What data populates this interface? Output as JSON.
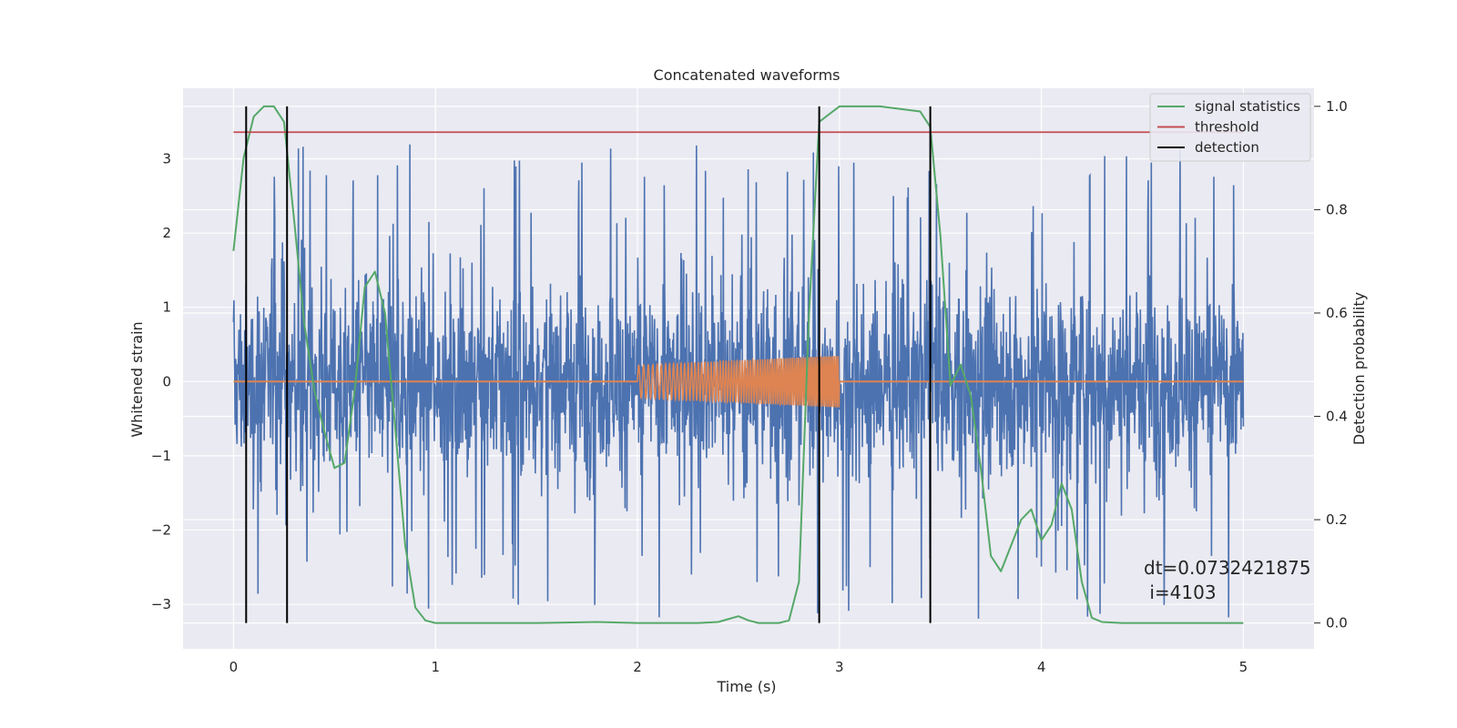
{
  "chart_data": {
    "type": "line",
    "title": "Concatenated waveforms",
    "xlabel": "Time (s)",
    "ylabel": "Whitened strain",
    "y2label": "Detection probability",
    "xlim": [
      -0.25,
      5.35
    ],
    "ylim": [
      -3.6,
      3.95
    ],
    "y2lim": [
      -0.05,
      1.035
    ],
    "xticks": [
      0,
      1,
      2,
      3,
      4,
      5
    ],
    "yticks": [
      -3,
      -2,
      -1,
      0,
      1,
      2,
      3
    ],
    "y2ticks": [
      0.0,
      0.2,
      0.4,
      0.6,
      0.8,
      1.0
    ],
    "grid": true,
    "legend_position": "top-right",
    "colors": {
      "background": "#eaeaf2",
      "noise": "#4c72b0",
      "template": "#dd8452",
      "signal_statistics": "#55a868",
      "threshold": "#c44e52",
      "detection": "#000000"
    },
    "series": [
      {
        "name": "signal statistics",
        "axis": "right",
        "x": [
          0.0,
          0.05,
          0.1,
          0.15,
          0.2,
          0.25,
          0.3,
          0.35,
          0.4,
          0.45,
          0.5,
          0.55,
          0.6,
          0.65,
          0.7,
          0.75,
          0.8,
          0.85,
          0.9,
          0.95,
          1.0,
          1.2,
          1.5,
          1.8,
          2.0,
          2.3,
          2.4,
          2.5,
          2.55,
          2.6,
          2.7,
          2.75,
          2.8,
          2.85,
          2.9,
          3.0,
          3.2,
          3.4,
          3.45,
          3.5,
          3.55,
          3.6,
          3.65,
          3.7,
          3.75,
          3.8,
          3.85,
          3.9,
          3.95,
          4.0,
          4.05,
          4.1,
          4.15,
          4.2,
          4.25,
          4.3,
          4.4,
          4.6,
          5.0
        ],
        "values": [
          0.72,
          0.9,
          0.98,
          1.0,
          1.0,
          0.97,
          0.78,
          0.58,
          0.45,
          0.37,
          0.3,
          0.31,
          0.45,
          0.65,
          0.68,
          0.6,
          0.38,
          0.15,
          0.03,
          0.005,
          0.0,
          0.0,
          0.0,
          0.002,
          0.0,
          0.0,
          0.002,
          0.013,
          0.005,
          0.0,
          0.0,
          0.005,
          0.08,
          0.6,
          0.97,
          1.0,
          1.0,
          0.99,
          0.96,
          0.75,
          0.46,
          0.5,
          0.44,
          0.3,
          0.13,
          0.1,
          0.15,
          0.2,
          0.22,
          0.16,
          0.19,
          0.27,
          0.22,
          0.08,
          0.01,
          0.002,
          0.0,
          0.0,
          0.0
        ]
      },
      {
        "name": "threshold",
        "axis": "right",
        "x": [
          0,
          5
        ],
        "values": [
          0.95,
          0.95
        ]
      },
      {
        "name": "detection",
        "axis": "right",
        "x": [
          0.0625,
          0.265,
          2.9,
          3.45
        ],
        "values": [
          1.0,
          1.0,
          1.0,
          1.0
        ]
      }
    ],
    "noise_series": {
      "axis": "left",
      "x_range": [
        0,
        5
      ],
      "amplitude_core": 0.85,
      "spike_max": 3.2
    },
    "template_series": {
      "axis": "left",
      "x_range": [
        2,
        3
      ],
      "amplitude_start": 0.22,
      "amplitude_end": 0.35
    },
    "annotations": [
      "dt=0.0732421875",
      " i=4103"
    ]
  }
}
